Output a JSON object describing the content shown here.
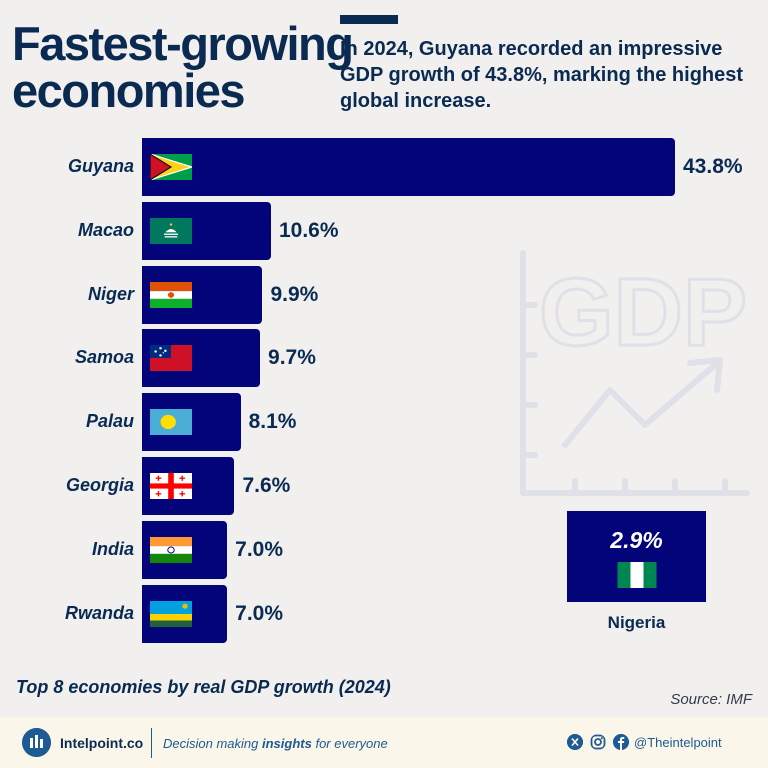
{
  "header": {
    "title_line1": "Fastest-growing",
    "title_line2": "economies",
    "subtitle": "In 2024, Guyana recorded an impressive GDP growth of 43.8%, marking the highest global increase."
  },
  "watermark_text": "GDP",
  "chart_data": {
    "type": "bar",
    "orientation": "horizontal",
    "title": "Top 8 economies by real GDP growth (2024)",
    "unit": "%",
    "categories": [
      "Guyana",
      "Macao",
      "Niger",
      "Samoa",
      "Palau",
      "Georgia",
      "India",
      "Rwanda"
    ],
    "values": [
      43.8,
      10.6,
      9.9,
      9.7,
      8.1,
      7.6,
      7.0,
      7.0
    ],
    "value_labels": [
      "43.8%",
      "10.6%",
      "9.9%",
      "9.7%",
      "8.1%",
      "7.6%",
      "7.0%",
      "7.0%"
    ],
    "xlim": [
      0,
      43.8
    ],
    "comparison": {
      "country": "Nigeria",
      "value": 2.9,
      "label": "2.9%"
    }
  },
  "caption": "Top 8 economies by real GDP growth (2024)",
  "source": "Source: IMF",
  "footer": {
    "brand": "Intelpoint.co",
    "tagline_pre": "Decision making ",
    "tagline_bold": "insights",
    "tagline_post": " for everyone",
    "handle": "@Theintelpoint"
  },
  "colors": {
    "bar": "#03037a",
    "text_dark": "#0a2a52",
    "background": "#f1f0ee",
    "footer_bg": "#fbf6ea",
    "brand_blue": "#1e5a93"
  }
}
